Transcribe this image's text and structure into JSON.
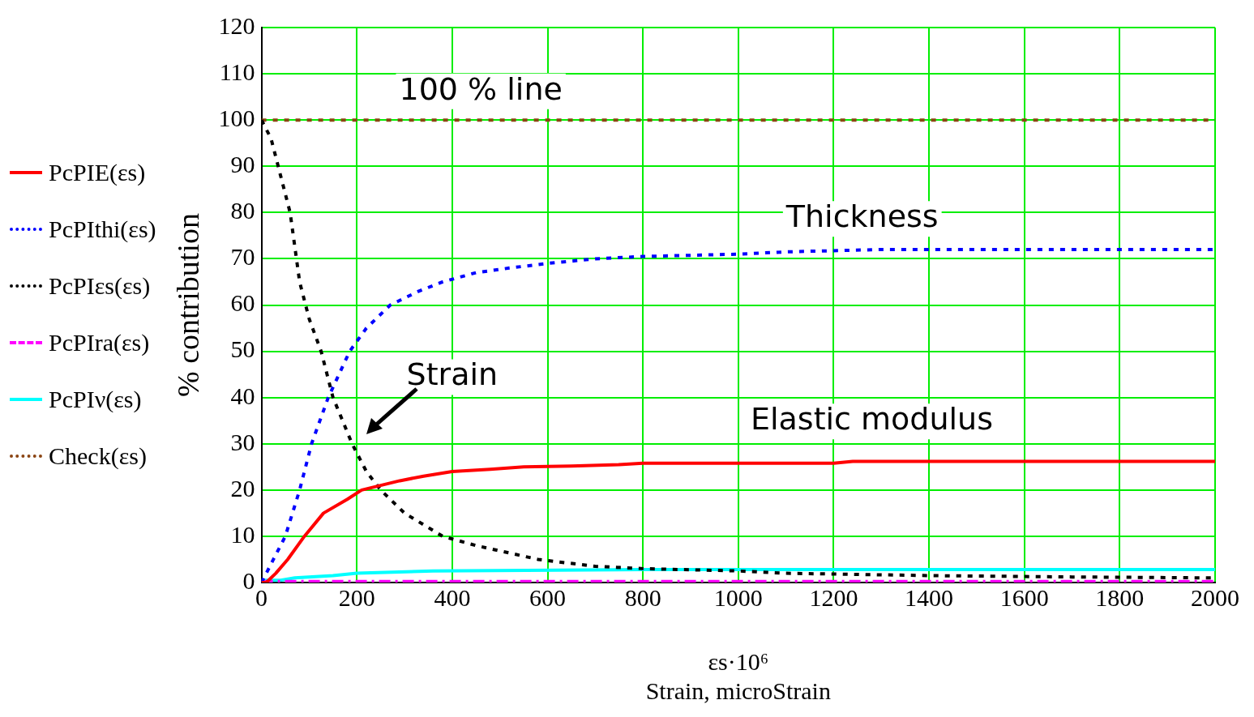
{
  "chart_data": {
    "type": "line",
    "xlabel": "εs·10⁶\nStrain, microStrain",
    "ylabel": "% contribution",
    "xlim": [
      0,
      2000
    ],
    "ylim": [
      0,
      120
    ],
    "xticks": [
      0,
      200,
      400,
      600,
      800,
      1000,
      1200,
      1400,
      1600,
      1800,
      2000
    ],
    "yticks": [
      0,
      10,
      20,
      30,
      40,
      50,
      60,
      70,
      80,
      90,
      100,
      110,
      120
    ],
    "grid": true,
    "legend": "left",
    "marker": "none",
    "series": [
      {
        "name": "PcPIE(εs)",
        "color": "#ff0000",
        "line_style": "solid",
        "x": [
          0,
          10,
          30,
          55,
          90,
          130,
          180,
          210,
          250,
          290,
          340,
          400,
          480,
          550,
          650,
          750,
          800,
          1000,
          1200,
          1240,
          1600,
          2000
        ],
        "values": [
          0,
          0,
          2,
          5,
          10,
          15,
          18,
          20,
          21,
          22,
          23,
          24,
          24.5,
          25,
          25.2,
          25.5,
          25.8,
          25.8,
          25.8,
          26.2,
          26.2,
          26.2
        ]
      },
      {
        "name": "PcPIthi(εs)",
        "color": "#0000ff",
        "line_style": "dotted",
        "x": [
          0,
          25,
          50,
          80,
          105,
          140,
          185,
          220,
          270,
          330,
          380,
          450,
          520,
          600,
          700,
          800,
          1000,
          1100,
          1300,
          1600,
          2000
        ],
        "values": [
          0,
          5,
          10,
          20,
          30,
          40,
          50,
          55,
          60,
          63,
          65,
          67,
          68,
          69,
          70,
          70.5,
          71,
          71.5,
          72,
          72,
          72
        ]
      },
      {
        "name": "PcPIεs(εs)",
        "color": "#000000",
        "line_style": "dotted",
        "x": [
          0,
          20,
          40,
          60,
          80,
          100,
          125,
          150,
          170,
          190,
          220,
          250,
          300,
          380,
          450,
          580,
          700,
          800,
          1000,
          1100,
          1400,
          1700,
          2000
        ],
        "values": [
          100,
          96,
          88,
          80,
          65,
          57,
          50,
          40,
          35,
          30,
          24,
          20,
          15,
          10,
          8,
          5,
          3.5,
          3,
          2.5,
          2,
          1.5,
          1.2,
          1
        ]
      },
      {
        "name": "PcPIra(εs)",
        "color": "#ff00ff",
        "line_style": "dashed",
        "x": [
          0,
          2000
        ],
        "values": [
          0.2,
          0.2
        ]
      },
      {
        "name": "PcPIν(εs)",
        "color": "#00ffff",
        "line_style": "solid",
        "x": [
          0,
          40,
          70,
          150,
          200,
          360,
          800,
          2000
        ],
        "values": [
          0.5,
          0.5,
          1,
          1.5,
          2,
          2.5,
          2.8,
          2.8
        ]
      },
      {
        "name": "Check(εs)",
        "color": "#8b4513",
        "line_style": "dotted",
        "x": [
          0,
          2000
        ],
        "values": [
          100,
          100
        ]
      }
    ],
    "annotations": [
      "100 % line",
      "Thickness",
      "Elastic modulus",
      "Strain"
    ]
  }
}
